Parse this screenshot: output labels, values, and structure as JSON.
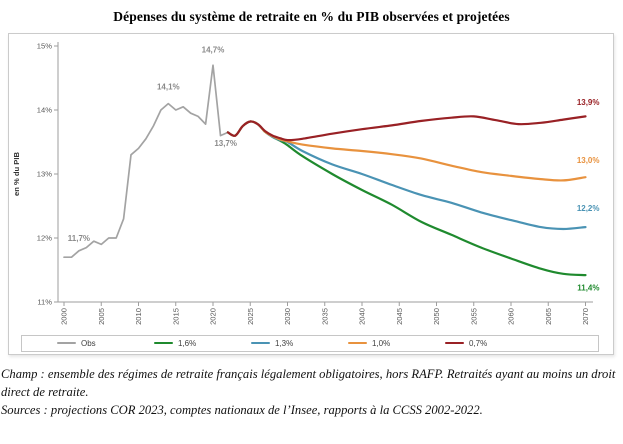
{
  "title": "Dépenses du système de retraite en % du PIB observées et projetées",
  "footer": {
    "champ": "Champ : ensemble des régimes de retraite français légalement obligatoires, hors RAFP. Retraités ayant au moins un droit direct de retraite.",
    "sources": "Sources : projections COR 2023, comptes nationaux de l’Insee, rapports à la CCSS 2002-2022."
  },
  "chart_data": {
    "type": "line",
    "title": "Dépenses du système de retraite en % du PIB observées et projetées",
    "xlabel": "",
    "ylabel": "en % du PIB",
    "ylim": [
      11,
      15
    ],
    "xlim": [
      2000,
      2070
    ],
    "grid": false,
    "legend_position": "bottom",
    "y_ticks": [
      "11%",
      "12%",
      "13%",
      "14%",
      "15%"
    ],
    "x_ticks": [
      2000,
      2005,
      2010,
      2015,
      2020,
      2025,
      2030,
      2035,
      2040,
      2045,
      2050,
      2055,
      2060,
      2065,
      2070
    ],
    "axis_color": "#9e9e9e",
    "tick_text_color": "#595959",
    "series": [
      {
        "name": "Obs",
        "color": "#a3a3a3",
        "width": 1.7,
        "smooth": false,
        "points": [
          [
            2000,
            11.7
          ],
          [
            2001,
            11.7
          ],
          [
            2002,
            11.8
          ],
          [
            2003,
            11.85
          ],
          [
            2004,
            11.95
          ],
          [
            2005,
            11.9
          ],
          [
            2006,
            12.0
          ],
          [
            2007,
            12.0
          ],
          [
            2008,
            12.3
          ],
          [
            2009,
            13.3
          ],
          [
            2010,
            13.4
          ],
          [
            2011,
            13.55
          ],
          [
            2012,
            13.75
          ],
          [
            2013,
            14.0
          ],
          [
            2014,
            14.1
          ],
          [
            2015,
            14.0
          ],
          [
            2016,
            14.05
          ],
          [
            2017,
            13.95
          ],
          [
            2018,
            13.9
          ],
          [
            2019,
            13.78
          ],
          [
            2020,
            14.7
          ],
          [
            2021,
            13.6
          ],
          [
            2022,
            13.65
          ]
        ]
      },
      {
        "name": "1,6%",
        "color": "#1f8a2e",
        "width": 2.2,
        "smooth": true,
        "points": [
          [
            2022,
            13.65
          ],
          [
            2023,
            13.6
          ],
          [
            2024,
            13.75
          ],
          [
            2025,
            13.82
          ],
          [
            2026,
            13.78
          ],
          [
            2027,
            13.66
          ],
          [
            2028,
            13.58
          ],
          [
            2029,
            13.52
          ],
          [
            2030,
            13.45
          ],
          [
            2032,
            13.28
          ],
          [
            2036,
            13.0
          ],
          [
            2040,
            12.75
          ],
          [
            2044,
            12.52
          ],
          [
            2048,
            12.25
          ],
          [
            2052,
            12.05
          ],
          [
            2056,
            11.85
          ],
          [
            2060,
            11.68
          ],
          [
            2064,
            11.52
          ],
          [
            2067,
            11.44
          ],
          [
            2070,
            11.42
          ]
        ]
      },
      {
        "name": "1,3%",
        "color": "#4a93b4",
        "width": 2.2,
        "smooth": true,
        "points": [
          [
            2022,
            13.65
          ],
          [
            2023,
            13.6
          ],
          [
            2024,
            13.75
          ],
          [
            2025,
            13.82
          ],
          [
            2026,
            13.78
          ],
          [
            2027,
            13.66
          ],
          [
            2028,
            13.58
          ],
          [
            2029,
            13.53
          ],
          [
            2030,
            13.5
          ],
          [
            2032,
            13.36
          ],
          [
            2036,
            13.15
          ],
          [
            2040,
            13.0
          ],
          [
            2044,
            12.83
          ],
          [
            2048,
            12.67
          ],
          [
            2052,
            12.55
          ],
          [
            2056,
            12.4
          ],
          [
            2060,
            12.28
          ],
          [
            2064,
            12.17
          ],
          [
            2067,
            12.14
          ],
          [
            2070,
            12.17
          ]
        ]
      },
      {
        "name": "1,0%",
        "color": "#e8923e",
        "width": 2.2,
        "smooth": true,
        "points": [
          [
            2022,
            13.65
          ],
          [
            2023,
            13.6
          ],
          [
            2024,
            13.75
          ],
          [
            2025,
            13.82
          ],
          [
            2026,
            13.78
          ],
          [
            2027,
            13.66
          ],
          [
            2028,
            13.59
          ],
          [
            2029,
            13.54
          ],
          [
            2030,
            13.51
          ],
          [
            2032,
            13.46
          ],
          [
            2036,
            13.4
          ],
          [
            2040,
            13.36
          ],
          [
            2044,
            13.31
          ],
          [
            2048,
            13.24
          ],
          [
            2052,
            13.13
          ],
          [
            2056,
            13.03
          ],
          [
            2060,
            12.97
          ],
          [
            2064,
            12.92
          ],
          [
            2067,
            12.9
          ],
          [
            2070,
            12.95
          ]
        ]
      },
      {
        "name": "0,7%",
        "color": "#992125",
        "width": 2.2,
        "smooth": true,
        "points": [
          [
            2022,
            13.65
          ],
          [
            2023,
            13.6
          ],
          [
            2024,
            13.75
          ],
          [
            2025,
            13.82
          ],
          [
            2026,
            13.78
          ],
          [
            2027,
            13.67
          ],
          [
            2028,
            13.6
          ],
          [
            2029,
            13.56
          ],
          [
            2030,
            13.53
          ],
          [
            2032,
            13.55
          ],
          [
            2036,
            13.63
          ],
          [
            2040,
            13.7
          ],
          [
            2044,
            13.76
          ],
          [
            2048,
            13.83
          ],
          [
            2052,
            13.88
          ],
          [
            2055,
            13.9
          ],
          [
            2058,
            13.84
          ],
          [
            2061,
            13.78
          ],
          [
            2064,
            13.8
          ],
          [
            2067,
            13.85
          ],
          [
            2070,
            13.9
          ]
        ]
      }
    ],
    "annotations": [
      {
        "text": "11,7%",
        "x": 2002,
        "y": 11.95,
        "color": "#8a8a8a",
        "align": "middle"
      },
      {
        "text": "14,1%",
        "x": 2014,
        "y": 14.32,
        "color": "#8a8a8a",
        "align": "middle"
      },
      {
        "text": "14,7%",
        "x": 2020,
        "y": 14.9,
        "color": "#8a8a8a",
        "align": "middle"
      },
      {
        "text": "13,7%",
        "x": 2021.7,
        "y": 13.44,
        "color": "#8a8a8a",
        "align": "middle"
      },
      {
        "text": "13,9%",
        "x": 2070,
        "y": 14.08,
        "color": "#992125",
        "align": "end"
      },
      {
        "text": "13,0%",
        "x": 2070,
        "y": 13.17,
        "color": "#e8923e",
        "align": "end"
      },
      {
        "text": "12,2%",
        "x": 2070,
        "y": 12.42,
        "color": "#4a93b4",
        "align": "end"
      },
      {
        "text": "11,4%",
        "x": 2070,
        "y": 11.18,
        "color": "#1f8a2e",
        "align": "end"
      }
    ]
  }
}
